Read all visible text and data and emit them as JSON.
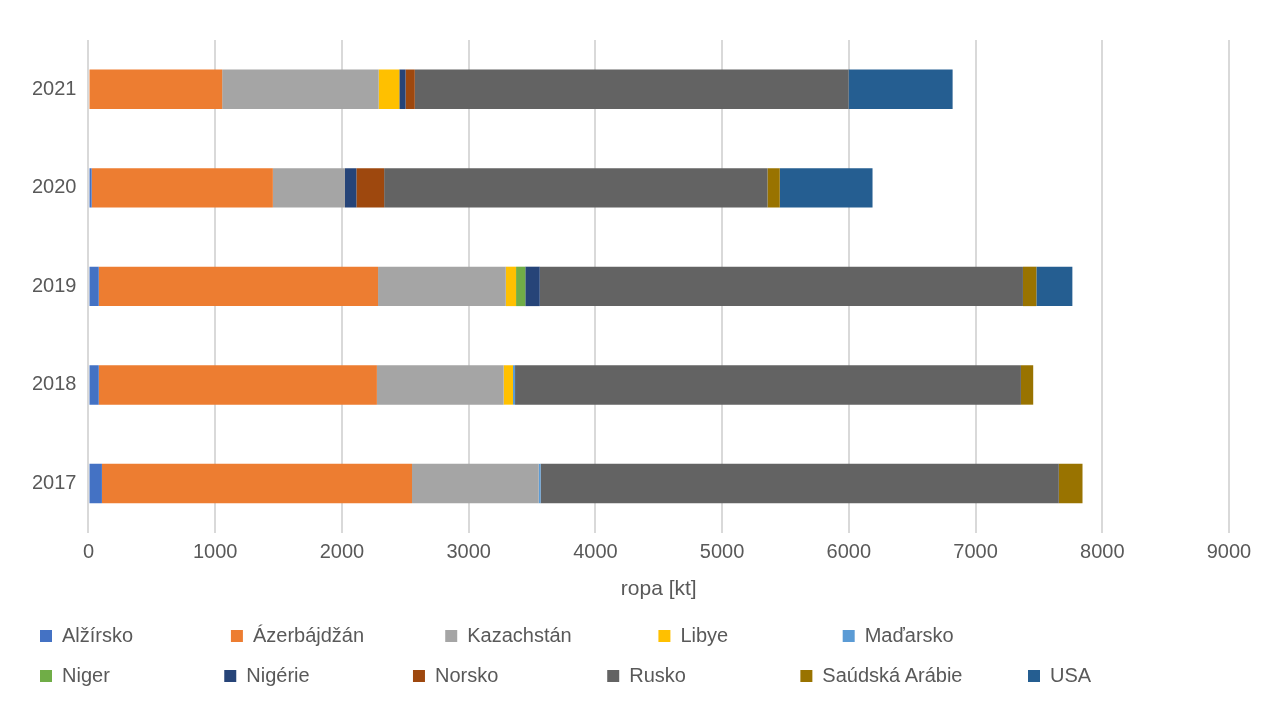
{
  "chart_data": {
    "type": "bar",
    "orientation": "horizontal",
    "stacked": true,
    "xlabel": "ropa [kt]",
    "categories": [
      "2021",
      "2020",
      "2019",
      "2018",
      "2017"
    ],
    "xlim": [
      0,
      9000
    ],
    "xticks": [
      0,
      1000,
      2000,
      3000,
      4000,
      5000,
      6000,
      7000,
      8000,
      9000
    ],
    "grid": "x",
    "legend": "bottom",
    "series": [
      {
        "name": "Alžírsko",
        "color": "#4472c4",
        "values": [
          null,
          25,
          81,
          81,
          106
        ]
      },
      {
        "name": "Ázerbájdžán",
        "color": "#ed7d31",
        "values": [
          1055,
          1430,
          2204,
          2195,
          2447
        ]
      },
      {
        "name": "Kazachstán",
        "color": "#a5a5a5",
        "values": [
          1235,
          569,
          1008,
          1000,
          1000
        ]
      },
      {
        "name": "Libye",
        "color": "#ffc000",
        "values": [
          163,
          null,
          81,
          74,
          null
        ]
      },
      {
        "name": "Maďarsko",
        "color": "#5b9bd5",
        "values": [
          null,
          null,
          null,
          16,
          15
        ]
      },
      {
        "name": "Niger",
        "color": "#70ad47",
        "values": [
          null,
          null,
          73,
          null,
          null
        ]
      },
      {
        "name": "Nigérie",
        "color": "#264478",
        "values": [
          49,
          90,
          114,
          null,
          null
        ]
      },
      {
        "name": "Norsko",
        "color": "#9e480e",
        "values": [
          73,
          219,
          null,
          null,
          null
        ]
      },
      {
        "name": "Rusko",
        "color": "#636363",
        "values": [
          3423,
          3025,
          3813,
          3992,
          4089
        ]
      },
      {
        "name": "Saúdská Arábie",
        "color": "#997300",
        "values": [
          null,
          97,
          106,
          97,
          187
        ]
      },
      {
        "name": "USA",
        "color": "#255e91",
        "values": [
          821,
          732,
          284,
          null,
          null
        ]
      }
    ]
  }
}
